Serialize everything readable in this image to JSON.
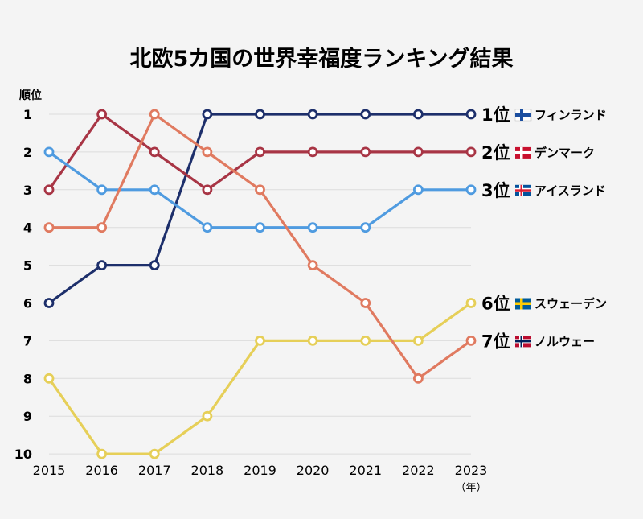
{
  "chart_data": {
    "type": "line",
    "title": "北欧5カ国の世界幸福度ランキング結果",
    "ylabel": "順位",
    "xlabel": "",
    "x_unit": "（年）",
    "x": [
      2015,
      2016,
      2017,
      2018,
      2019,
      2020,
      2021,
      2022,
      2023
    ],
    "y_ticks": [
      1,
      2,
      3,
      4,
      5,
      6,
      7,
      8,
      9,
      10
    ],
    "ylim": [
      10,
      1
    ],
    "y_inverted": true,
    "grid": true,
    "legend": "right-end labels",
    "series": [
      {
        "name": "フィンランド",
        "rank_label": "1位",
        "flag": "flag-finland",
        "color": "#1d2f6b",
        "values": [
          6,
          5,
          5,
          1,
          1,
          1,
          1,
          1,
          1
        ]
      },
      {
        "name": "デンマーク",
        "rank_label": "2位",
        "flag": "flag-denmark",
        "color": "#a83545",
        "values": [
          3,
          1,
          2,
          3,
          2,
          2,
          2,
          2,
          2
        ]
      },
      {
        "name": "アイスランド",
        "rank_label": "3位",
        "flag": "flag-iceland",
        "color": "#4f9be0",
        "values": [
          2,
          3,
          3,
          4,
          4,
          4,
          4,
          3,
          3
        ]
      },
      {
        "name": "スウェーデン",
        "rank_label": "6位",
        "flag": "flag-sweden",
        "color": "#e6cf58",
        "values": [
          8,
          10,
          10,
          9,
          7,
          7,
          7,
          7,
          6
        ]
      },
      {
        "name": "ノルウェー",
        "rank_label": "7位",
        "flag": "flag-norway",
        "color": "#e07a60",
        "values": [
          4,
          4,
          1,
          2,
          3,
          5,
          6,
          8,
          7
        ]
      }
    ]
  }
}
